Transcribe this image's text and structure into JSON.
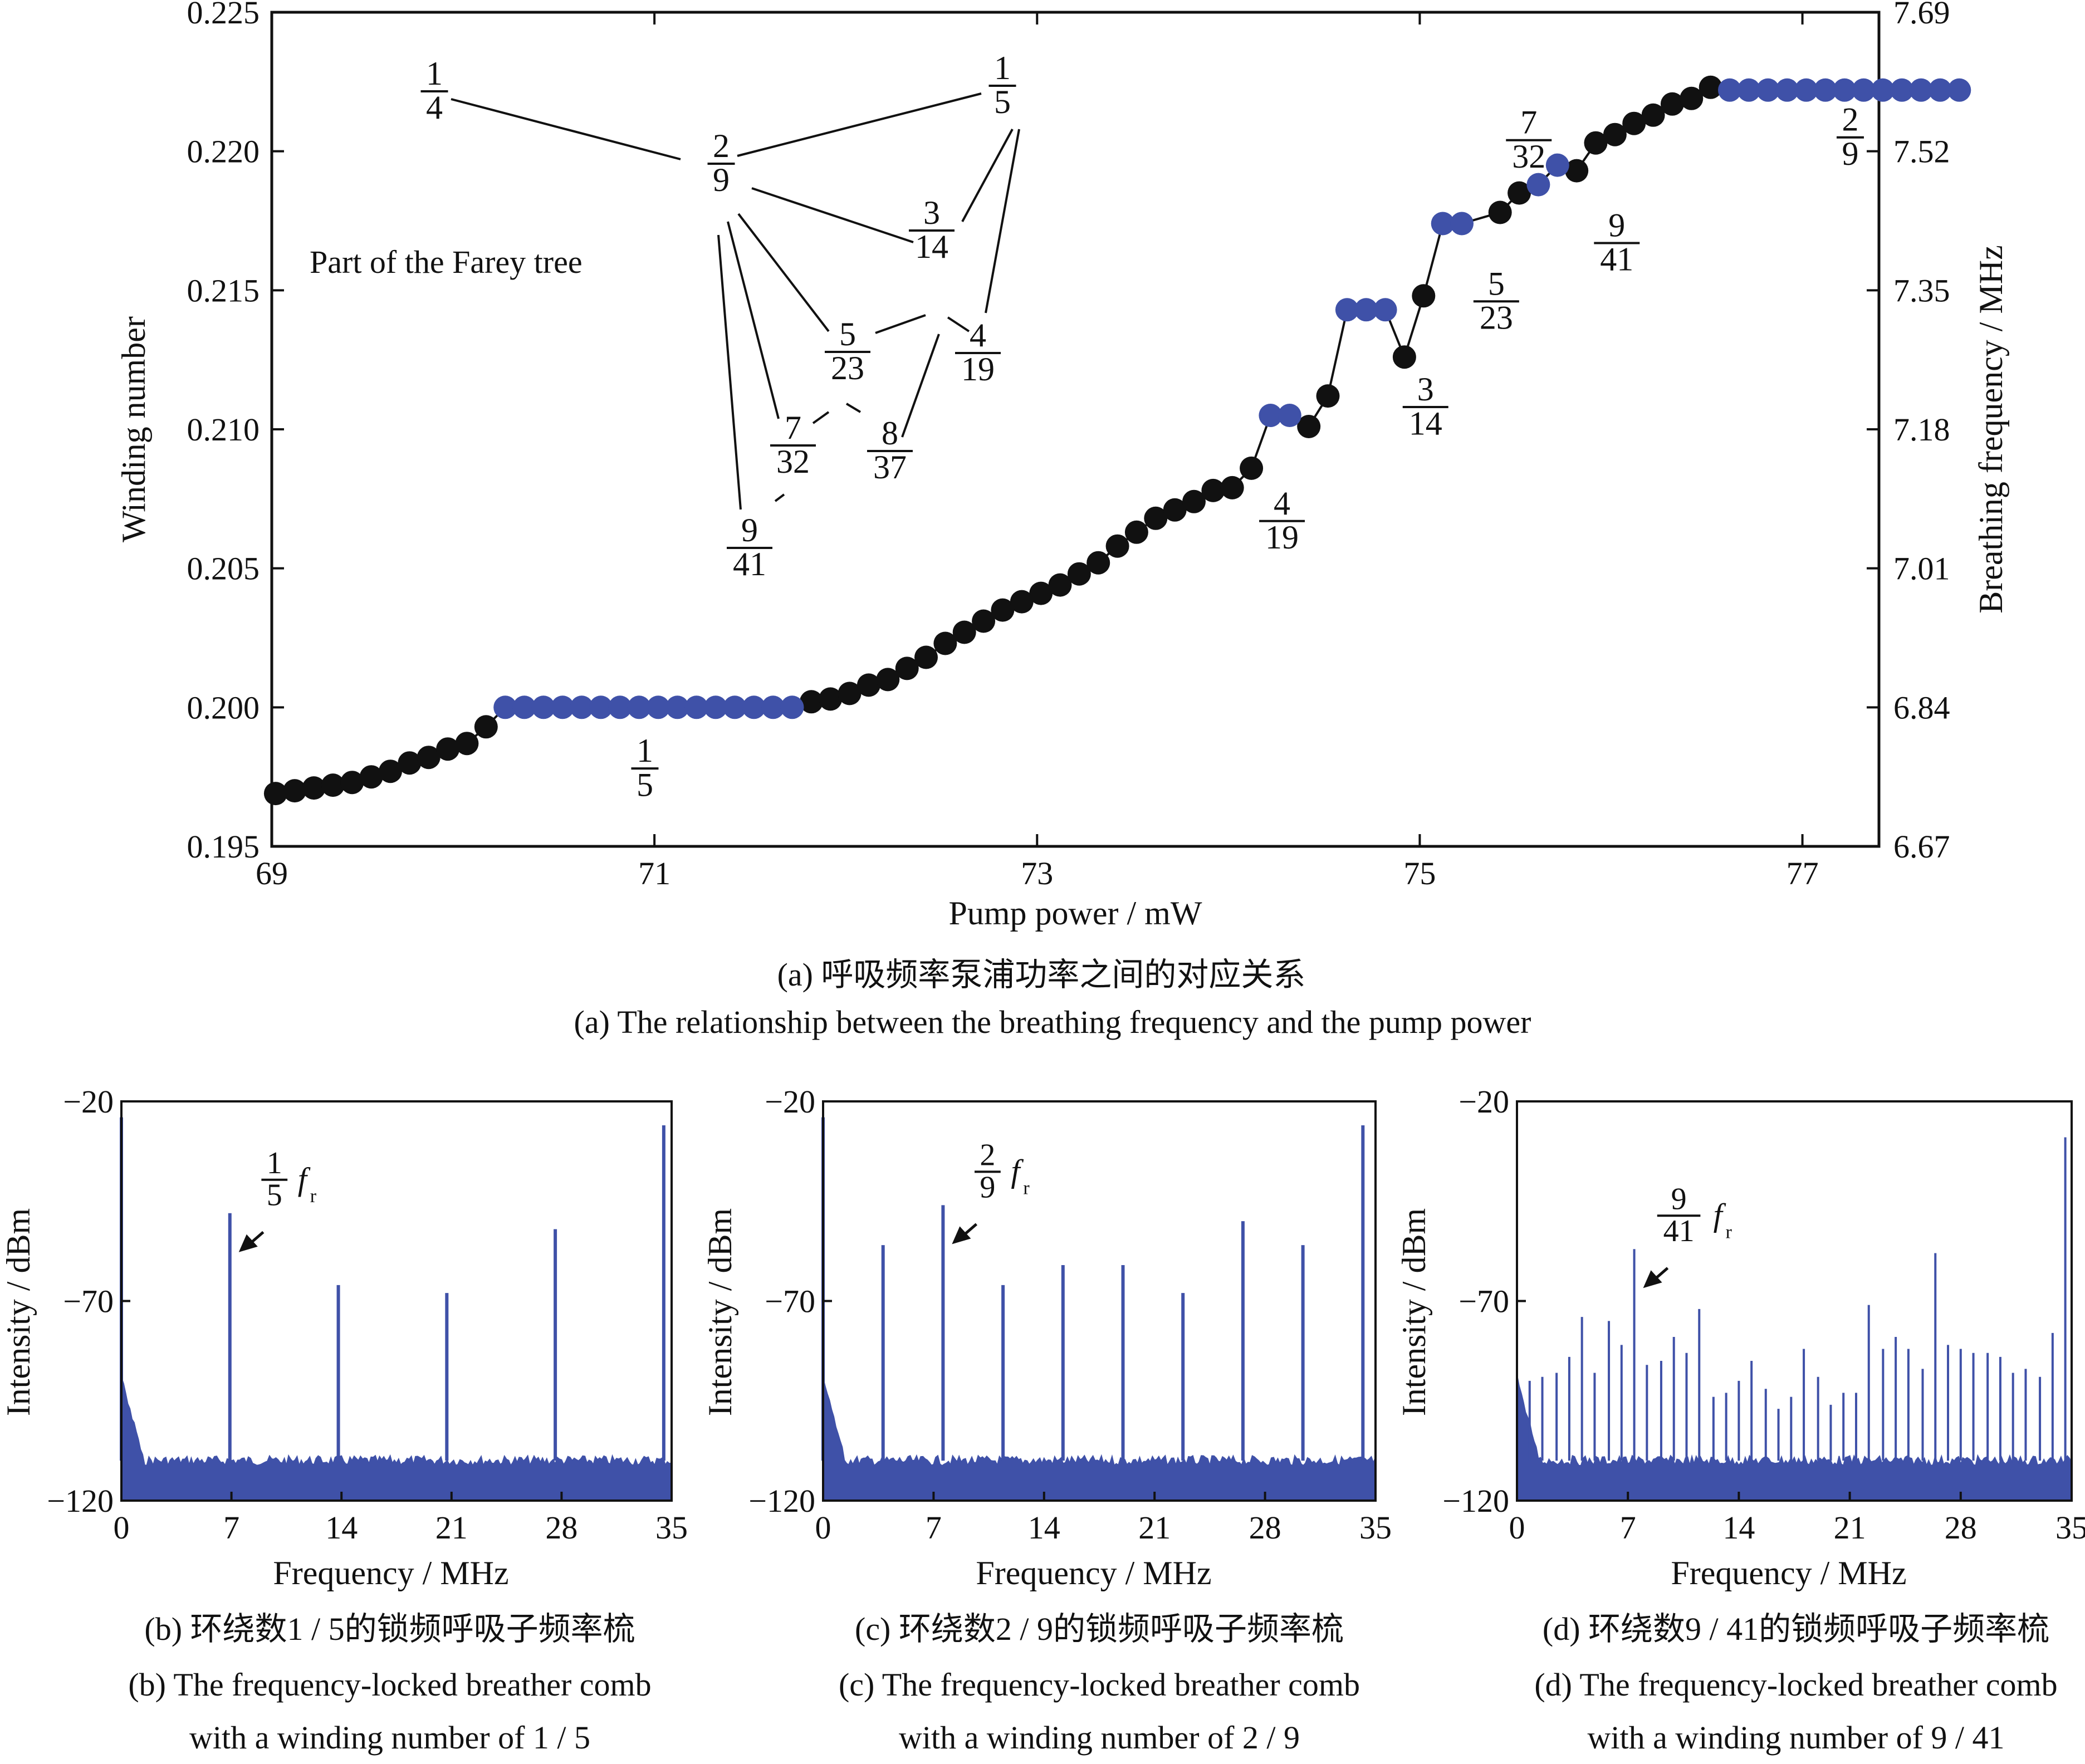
{
  "chart_data": [
    {
      "id": "a",
      "type": "scatter",
      "xlabel": "Pump power / mW",
      "ylabel": "Winding number",
      "y2label": "Breathing frequency / MHz",
      "xlim": [
        69,
        77.4
      ],
      "ylim": [
        0.195,
        0.225
      ],
      "y2lim": [
        6.67,
        7.69
      ],
      "xticks": [
        "69",
        "71",
        "73",
        "75",
        "77"
      ],
      "yticks": [
        "0.195",
        "0.200",
        "0.205",
        "0.210",
        "0.215",
        "0.220",
        "0.225"
      ],
      "y2ticks": [
        "6.67",
        "6.84",
        "7.01",
        "7.18",
        "7.35",
        "7.52",
        "7.69"
      ],
      "inset_title": "Part of the Farey tree",
      "series": [
        {
          "color": "#111111",
          "points": [
            [
              69.02,
              0.1969
            ],
            [
              69.12,
              0.197
            ],
            [
              69.22,
              0.1971
            ],
            [
              69.32,
              0.1972
            ],
            [
              69.42,
              0.1973
            ],
            [
              69.52,
              0.1975
            ],
            [
              69.62,
              0.1977
            ],
            [
              69.72,
              0.198
            ],
            [
              69.82,
              0.1982
            ],
            [
              69.92,
              0.1985
            ],
            [
              70.02,
              0.1987
            ],
            [
              70.12,
              0.1993
            ],
            [
              71.82,
              0.2002
            ],
            [
              71.92,
              0.2003
            ],
            [
              72.02,
              0.2005
            ],
            [
              72.12,
              0.2008
            ],
            [
              72.22,
              0.201
            ],
            [
              72.32,
              0.2014
            ],
            [
              72.42,
              0.2018
            ],
            [
              72.52,
              0.2023
            ],
            [
              72.62,
              0.2027
            ],
            [
              72.72,
              0.2031
            ],
            [
              72.82,
              0.2035
            ],
            [
              72.92,
              0.2038
            ],
            [
              73.02,
              0.2041
            ],
            [
              73.12,
              0.2044
            ],
            [
              73.22,
              0.2048
            ],
            [
              73.32,
              0.2052
            ],
            [
              73.42,
              0.2058
            ],
            [
              73.52,
              0.2063
            ],
            [
              73.62,
              0.2068
            ],
            [
              73.72,
              0.2071
            ],
            [
              73.82,
              0.2074
            ],
            [
              73.92,
              0.2078
            ],
            [
              74.02,
              0.2079
            ],
            [
              74.12,
              0.2086
            ],
            [
              74.42,
              0.2101
            ],
            [
              74.52,
              0.2112
            ],
            [
              74.92,
              0.2126
            ],
            [
              75.02,
              0.2148
            ],
            [
              75.42,
              0.2178
            ],
            [
              75.52,
              0.2185
            ],
            [
              75.82,
              0.2193
            ],
            [
              75.92,
              0.2203
            ],
            [
              76.02,
              0.2206
            ],
            [
              76.12,
              0.221
            ],
            [
              76.22,
              0.2213
            ],
            [
              76.32,
              0.2217
            ],
            [
              76.42,
              0.2219
            ],
            [
              76.52,
              0.2223
            ]
          ]
        },
        {
          "color": "#3f51a8",
          "points": [
            [
              70.22,
              0.2
            ],
            [
              70.32,
              0.2
            ],
            [
              70.42,
              0.2
            ],
            [
              70.52,
              0.2
            ],
            [
              70.62,
              0.2
            ],
            [
              70.72,
              0.2
            ],
            [
              70.82,
              0.2
            ],
            [
              70.92,
              0.2
            ],
            [
              71.02,
              0.2
            ],
            [
              71.12,
              0.2
            ],
            [
              71.22,
              0.2
            ],
            [
              71.32,
              0.2
            ],
            [
              71.42,
              0.2
            ],
            [
              71.52,
              0.2
            ],
            [
              71.62,
              0.2
            ],
            [
              71.72,
              0.2
            ],
            [
              74.22,
              0.2105
            ],
            [
              74.32,
              0.2105
            ],
            [
              74.62,
              0.2143
            ],
            [
              74.72,
              0.2143
            ],
            [
              74.82,
              0.2143
            ],
            [
              75.12,
              0.2174
            ],
            [
              75.22,
              0.2174
            ],
            [
              75.62,
              0.2188
            ],
            [
              75.72,
              0.2195
            ],
            [
              76.62,
              0.2222
            ],
            [
              76.72,
              0.2222
            ],
            [
              76.82,
              0.2222
            ],
            [
              76.92,
              0.2222
            ],
            [
              77.02,
              0.2222
            ],
            [
              77.12,
              0.2222
            ],
            [
              77.22,
              0.2222
            ],
            [
              77.32,
              0.2222
            ],
            [
              77.42,
              0.2222
            ],
            [
              77.52,
              0.2222
            ],
            [
              77.62,
              0.2222
            ],
            [
              77.72,
              0.2222
            ],
            [
              77.82,
              0.2222
            ]
          ]
        }
      ],
      "annotations": [
        {
          "num": "1",
          "den": "5",
          "x": 70.95,
          "y": 0.1978
        },
        {
          "num": "4",
          "den": "19",
          "x": 74.28,
          "y": 0.2067
        },
        {
          "num": "3",
          "den": "14",
          "x": 75.03,
          "y": 0.2108
        },
        {
          "num": "5",
          "den": "23",
          "x": 75.4,
          "y": 0.2146
        },
        {
          "num": "7",
          "den": "32",
          "x": 75.57,
          "y": 0.2204
        },
        {
          "num": "9",
          "den": "41",
          "x": 76.03,
          "y": 0.2167
        },
        {
          "num": "2",
          "den": "9",
          "x": 77.25,
          "y": 0.2205
        }
      ],
      "farey": [
        {
          "id": "n14",
          "num": "1",
          "den": "4"
        },
        {
          "id": "n29",
          "num": "2",
          "den": "9"
        },
        {
          "id": "n15",
          "num": "1",
          "den": "5"
        },
        {
          "id": "n314",
          "num": "3",
          "den": "14"
        },
        {
          "id": "n523",
          "num": "5",
          "den": "23"
        },
        {
          "id": "n419",
          "num": "4",
          "den": "19"
        },
        {
          "id": "n732",
          "num": "7",
          "den": "32"
        },
        {
          "id": "n837",
          "num": "8",
          "den": "37"
        },
        {
          "id": "n941",
          "num": "9",
          "den": "41"
        }
      ],
      "caption_cn": "(a) 呼吸频率泵浦功率之间的对应关系",
      "caption_en": "(a) The relationship between the breathing frequency and the pump power"
    },
    {
      "id": "b",
      "type": "line",
      "xlabel": "Frequency / MHz",
      "ylabel": "Intensity / dBm",
      "xlim": [
        0,
        35
      ],
      "ylim": [
        -120,
        -20
      ],
      "xticks": [
        0,
        7,
        14,
        21,
        28,
        35
      ],
      "yticks": [
        -20,
        -70,
        -120
      ],
      "color": "#3f51a8",
      "noise_floor": -110,
      "peaks": [
        [
          0,
          -24
        ],
        [
          6.9,
          -48
        ],
        [
          13.8,
          -66
        ],
        [
          20.7,
          -68
        ],
        [
          27.6,
          -52
        ],
        [
          34.5,
          -26
        ]
      ],
      "label": {
        "num": "1",
        "den": "5",
        "var": "f",
        "sub": "r"
      },
      "caption_cn": "(b) 环绕数1 / 5的锁频呼吸子频率梳",
      "caption_en1": "(b) The frequency-locked breather comb",
      "caption_en2": "with a winding number of 1 / 5"
    },
    {
      "id": "c",
      "type": "line",
      "xlabel": "Frequency / MHz",
      "ylabel": "Intensity / dBm",
      "xlim": [
        0,
        35
      ],
      "ylim": [
        -120,
        -20
      ],
      "xticks": [
        0,
        7,
        14,
        21,
        28,
        35
      ],
      "yticks": [
        -20,
        -70,
        -120
      ],
      "color": "#3f51a8",
      "noise_floor": -110,
      "peaks": [
        [
          0,
          -24
        ],
        [
          3.8,
          -56
        ],
        [
          7.6,
          -46
        ],
        [
          11.4,
          -66
        ],
        [
          15.2,
          -61
        ],
        [
          19.0,
          -61
        ],
        [
          22.8,
          -68
        ],
        [
          26.6,
          -50
        ],
        [
          30.4,
          -56
        ],
        [
          34.2,
          -26
        ]
      ],
      "label": {
        "num": "2",
        "den": "9",
        "var": "f",
        "sub": "r"
      },
      "caption_cn": "(c) 环绕数2 / 9的锁频呼吸子频率梳",
      "caption_en1": "(c) The frequency-locked breather comb",
      "caption_en2": "with a winding number of 2 / 9"
    },
    {
      "id": "d",
      "type": "line",
      "xlabel": "Frequency / MHz",
      "ylabel": "Intensity / dBm",
      "xlim": [
        0,
        35
      ],
      "ylim": [
        -120,
        -20
      ],
      "xticks": [
        0,
        7,
        14,
        21,
        28,
        35
      ],
      "yticks": [
        -20,
        -70,
        -120
      ],
      "color": "#3f51a8",
      "noise_floor": -110,
      "peaks": [
        [
          0,
          -27
        ],
        [
          0.8,
          -90
        ],
        [
          1.6,
          -89
        ],
        [
          2.5,
          -88
        ],
        [
          3.3,
          -84
        ],
        [
          4.1,
          -74
        ],
        [
          4.9,
          -88
        ],
        [
          5.8,
          -75
        ],
        [
          6.6,
          -81
        ],
        [
          7.4,
          -57
        ],
        [
          8.2,
          -86
        ],
        [
          9.1,
          -85
        ],
        [
          9.9,
          -79
        ],
        [
          10.7,
          -83
        ],
        [
          11.5,
          -72
        ],
        [
          12.4,
          -94
        ],
        [
          13.2,
          -93
        ],
        [
          14.0,
          -90
        ],
        [
          14.8,
          -85
        ],
        [
          15.7,
          -92
        ],
        [
          16.5,
          -97
        ],
        [
          17.3,
          -94
        ],
        [
          18.1,
          -82
        ],
        [
          19.0,
          -89
        ],
        [
          19.8,
          -96
        ],
        [
          20.6,
          -93
        ],
        [
          21.4,
          -93
        ],
        [
          22.2,
          -71
        ],
        [
          23.1,
          -82
        ],
        [
          23.9,
          -79
        ],
        [
          24.7,
          -82
        ],
        [
          25.6,
          -87
        ],
        [
          26.4,
          -58
        ],
        [
          27.2,
          -81
        ],
        [
          28.0,
          -82
        ],
        [
          28.8,
          -83
        ],
        [
          29.7,
          -83
        ],
        [
          30.5,
          -84
        ],
        [
          31.3,
          -88
        ],
        [
          32.1,
          -87
        ],
        [
          33.0,
          -89
        ],
        [
          33.8,
          -78
        ],
        [
          34.6,
          -29
        ]
      ],
      "label": {
        "num": "9",
        "den": "41",
        "var": "f",
        "sub": "r"
      },
      "caption_cn": "(d) 环绕数9 / 41的锁频呼吸子频率梳",
      "caption_en1": "(d) The frequency-locked breather comb",
      "caption_en2": "with a winding number of 9 / 41"
    }
  ]
}
